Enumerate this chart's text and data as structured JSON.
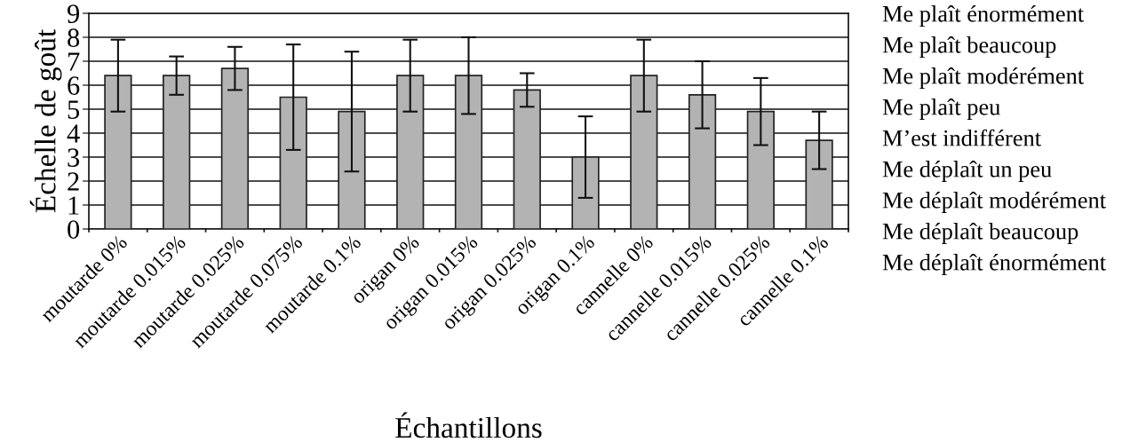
{
  "chart_data": {
    "type": "bar",
    "xlabel": "Échantillons",
    "ylabel": "Échelle de goût",
    "categories": [
      "moutarde 0%",
      "moutarde 0.015%",
      "moutarde 0.025%",
      "moutarde 0.075%",
      "moutarde 0.1%",
      "origan 0%",
      "origan 0.015%",
      "origan 0.025%",
      "origan 0.1%",
      "cannelle 0%",
      "cannelle 0.015%",
      "cannelle 0.025%",
      "cannelle 0.1%"
    ],
    "values": [
      6.4,
      6.4,
      6.7,
      5.5,
      4.9,
      6.4,
      6.4,
      5.8,
      3.0,
      6.4,
      5.6,
      4.9,
      3.7
    ],
    "errors": [
      1.5,
      0.8,
      0.9,
      2.2,
      2.5,
      1.5,
      1.6,
      0.7,
      1.7,
      1.5,
      1.4,
      1.4,
      1.2
    ],
    "color": "#b3b3b3",
    "ylim": [
      0,
      9
    ],
    "yticks": [
      0,
      1,
      2,
      3,
      4,
      5,
      6,
      7,
      8,
      9
    ],
    "grid": "y",
    "annotations": [
      "Me plaît énormément",
      "Me plaît beaucoup",
      "Me plaît modérément",
      "Me plaît peu",
      "M’est indifférent",
      "Me déplaît un peu",
      "Me déplaît modérément",
      "Me déplaît beaucoup",
      "Me déplaît énormément"
    ]
  }
}
